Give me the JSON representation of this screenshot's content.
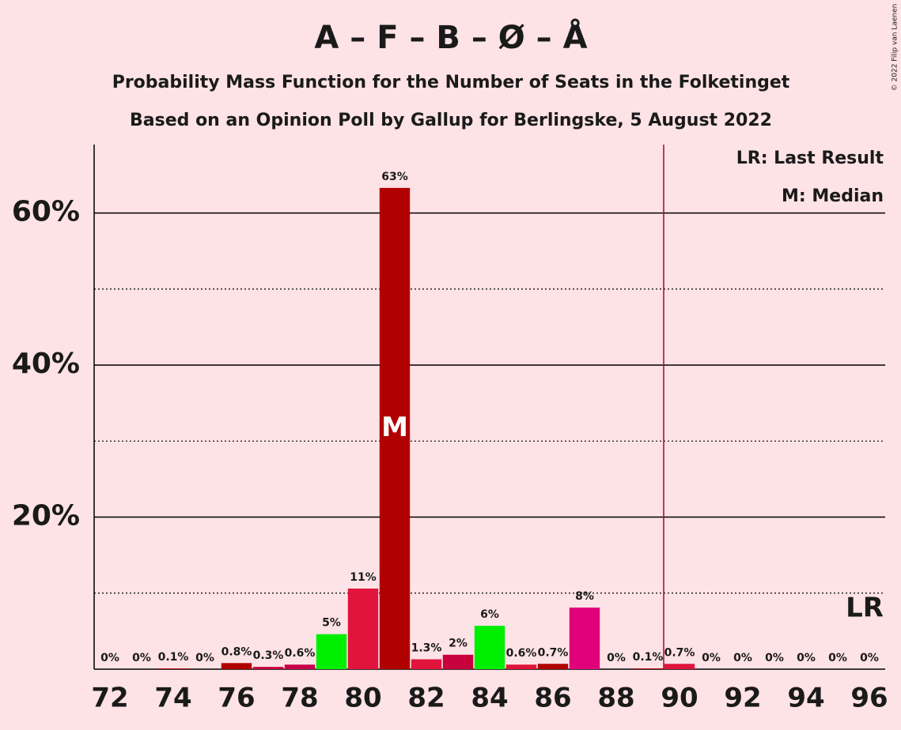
{
  "chart_data": {
    "type": "bar",
    "title": "A – F – B – Ø – Å",
    "subtitle": "Probability Mass Function for the Number of Seats in the Folketinget",
    "subtitle2": "Based on an Opinion Poll by Gallup for Berlingske, 5 August 2022",
    "copyright": "© 2022 Filip van Laenen",
    "legend": [
      "LR: Last Result",
      "M: Median"
    ],
    "x": [
      72,
      73,
      74,
      75,
      76,
      77,
      78,
      79,
      80,
      81,
      82,
      83,
      84,
      85,
      86,
      87,
      88,
      89,
      90,
      91,
      92,
      93,
      94,
      95,
      96
    ],
    "values": [
      0,
      0,
      0.1,
      0,
      0.8,
      0.3,
      0.6,
      4.6,
      10.6,
      63.3,
      1.3,
      1.9,
      5.7,
      0.6,
      0.7,
      8.1,
      0,
      0.1,
      0.7,
      0,
      0,
      0,
      0,
      0,
      0
    ],
    "value_labels": [
      "0%",
      "0%",
      "0.1%",
      "0%",
      "0.8%",
      "0.3%",
      "0.6%",
      "5%",
      "11%",
      "63%",
      "1.3%",
      "2%",
      "6%",
      "0.6%",
      "0.7%",
      "8%",
      "0%",
      "0.1%",
      "0.7%",
      "0%",
      "0%",
      "0%",
      "0%",
      "0%",
      "0%"
    ],
    "colors": [
      "#b00000",
      "#b00000",
      "#b00000",
      "#b00000",
      "#b00000",
      "#c8003c",
      "#c8004a",
      "#00ee00",
      "#e0143c",
      "#b00000",
      "#e0143c",
      "#c8003c",
      "#00ee00",
      "#e0143c",
      "#b00000",
      "#e0007a",
      "#b00000",
      "#b00000",
      "#e0143c",
      "#b00000",
      "#b00000",
      "#b00000",
      "#b00000",
      "#b00000",
      "#b00000"
    ],
    "xlim": [
      71.5,
      96.5
    ],
    "xticks": [
      72,
      74,
      76,
      78,
      80,
      82,
      84,
      86,
      88,
      90,
      92,
      94,
      96
    ],
    "ylim": [
      0,
      69
    ],
    "yticks": [
      {
        "value": 20,
        "label": "20%"
      },
      {
        "value": 40,
        "label": "40%"
      },
      {
        "value": 60,
        "label": "60%"
      }
    ],
    "minor_yticks": [
      10,
      30,
      50
    ],
    "median": 81,
    "median_label": "M",
    "last_result": 90,
    "last_result_label": "LR",
    "last_result_color": "#b0002a"
  }
}
